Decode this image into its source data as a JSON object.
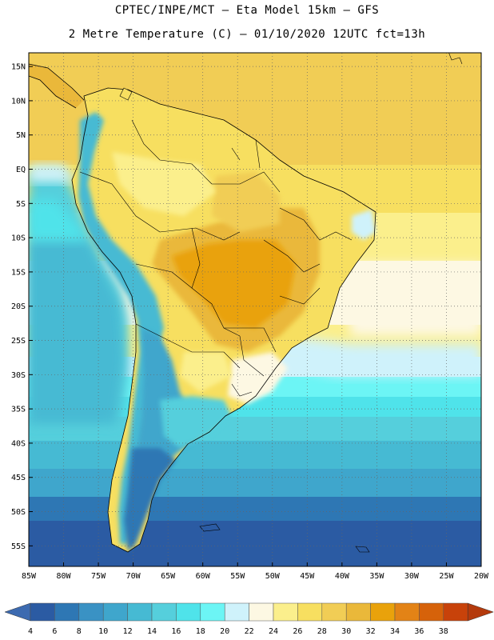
{
  "header": {
    "line1": "CPTEC/INPE/MCT –  Eta Model 15km – GFS",
    "line2": "2 Metre Temperature (C) – 01/10/2020 12UTC fct=13h"
  },
  "axes": {
    "lat_labels": [
      "15N",
      "10N",
      "5N",
      "EQ",
      "5S",
      "10S",
      "15S",
      "20S",
      "25S",
      "30S",
      "35S",
      "40S",
      "45S",
      "50S",
      "55S"
    ],
    "lon_labels": [
      "85W",
      "80W",
      "75W",
      "70W",
      "65W",
      "60W",
      "55W",
      "50W",
      "45W",
      "40W",
      "35W",
      "30W",
      "25W",
      "20W"
    ],
    "lon_range": [
      -85,
      -20
    ],
    "lat_range": [
      -58,
      17
    ]
  },
  "colorbar": {
    "labels": [
      "4",
      "6",
      "8",
      "10",
      "12",
      "14",
      "16",
      "18",
      "20",
      "22",
      "24",
      "26",
      "28",
      "30",
      "32",
      "34",
      "36",
      "38"
    ],
    "colors": [
      "#2b5ba3",
      "#2e77b4",
      "#3a92c4",
      "#3fa6cc",
      "#46bad3",
      "#55cfdc",
      "#4fe3ea",
      "#6cf5f5",
      "#cff2fb",
      "#fdf8e3",
      "#fbef8c",
      "#f7df60",
      "#f1cd55",
      "#eab83a",
      "#e9a20b",
      "#e38316",
      "#d6620a",
      "#c8420a"
    ],
    "left_arrow_color": "#3c6ab0",
    "right_arrow_color": "#b43a0c"
  },
  "legend_colors": {
    "ocean_north": "#f1cd55",
    "land_warm": "#eab83a",
    "ocean_south": "#2b5ba3",
    "border": "#000000"
  }
}
